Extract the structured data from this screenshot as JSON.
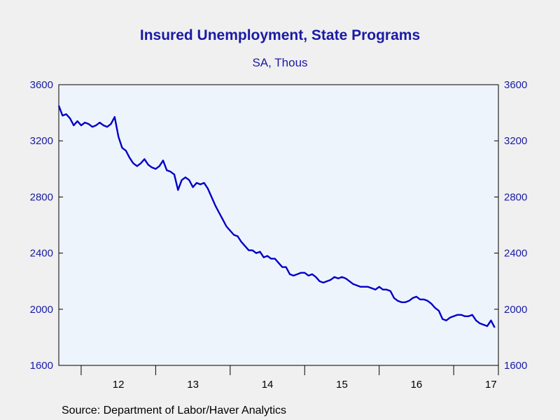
{
  "chart_data": {
    "type": "line",
    "title": "Insured Unemployment, State Programs",
    "subtitle": "SA, Thous",
    "source": "Source:  Department of Labor/Haver Analytics",
    "ylim": [
      1600,
      3600
    ],
    "yticks": [
      1600,
      2000,
      2400,
      2800,
      3200,
      3600
    ],
    "ytick_labels": [
      "1600",
      "2000",
      "2400",
      "2800",
      "3200",
      "3600"
    ],
    "axis_right_mirrored": true,
    "xlim": [
      2011.7,
      2017.6
    ],
    "x_year_ticks": [
      2012,
      2013,
      2014,
      2015,
      2016,
      2017
    ],
    "x_labels": [
      {
        "x": 2012.5,
        "label": "12"
      },
      {
        "x": 2013.5,
        "label": "13"
      },
      {
        "x": 2014.5,
        "label": "14"
      },
      {
        "x": 2015.5,
        "label": "15"
      },
      {
        "x": 2016.5,
        "label": "16"
      },
      {
        "x": 2017.5,
        "label": "17"
      }
    ],
    "grid": false,
    "colors": {
      "line": "#0000c8",
      "plot_bg": "#eef4fc",
      "text": "#1a1aa6"
    },
    "series": [
      {
        "x": [
          2011.7,
          2011.75,
          2011.8,
          2011.85,
          2011.9,
          2011.95,
          2012.0,
          2012.05,
          2012.1,
          2012.15,
          2012.2,
          2012.25,
          2012.3,
          2012.35,
          2012.4,
          2012.45,
          2012.5,
          2012.55,
          2012.6,
          2012.65,
          2012.7,
          2012.75,
          2012.8,
          2012.85,
          2012.9,
          2012.95,
          2013.0,
          2013.05,
          2013.1,
          2013.15,
          2013.2,
          2013.25,
          2013.3,
          2013.35,
          2013.4,
          2013.45,
          2013.5,
          2013.55,
          2013.6,
          2013.65,
          2013.7,
          2013.75,
          2013.8,
          2013.85,
          2013.9,
          2013.95,
          2014.0,
          2014.05,
          2014.1,
          2014.15,
          2014.2,
          2014.25,
          2014.3,
          2014.35,
          2014.4,
          2014.45,
          2014.5,
          2014.55,
          2014.6,
          2014.65,
          2014.7,
          2014.75,
          2014.8,
          2014.85,
          2014.9,
          2014.95,
          2015.0,
          2015.05,
          2015.1,
          2015.15,
          2015.2,
          2015.25,
          2015.3,
          2015.35,
          2015.4,
          2015.45,
          2015.5,
          2015.55,
          2015.6,
          2015.65,
          2015.7,
          2015.75,
          2015.8,
          2015.85,
          2015.9,
          2015.95,
          2016.0,
          2016.05,
          2016.1,
          2016.15,
          2016.2,
          2016.25,
          2016.3,
          2016.35,
          2016.4,
          2016.45,
          2016.5,
          2016.55,
          2016.6,
          2016.65,
          2016.7,
          2016.75,
          2016.8,
          2016.85,
          2016.9,
          2016.95,
          2017.0,
          2017.05,
          2017.1,
          2017.15,
          2017.2,
          2017.25,
          2017.3,
          2017.35,
          2017.4,
          2017.45,
          2017.5,
          2017.55
        ],
        "y": [
          3450,
          3380,
          3390,
          3360,
          3310,
          3340,
          3310,
          3330,
          3320,
          3300,
          3310,
          3330,
          3310,
          3300,
          3320,
          3370,
          3230,
          3150,
          3130,
          3080,
          3040,
          3020,
          3040,
          3070,
          3030,
          3010,
          3000,
          3020,
          3060,
          2990,
          2980,
          2960,
          2850,
          2920,
          2940,
          2920,
          2870,
          2900,
          2890,
          2900,
          2860,
          2800,
          2740,
          2690,
          2640,
          2590,
          2560,
          2530,
          2520,
          2480,
          2450,
          2420,
          2420,
          2400,
          2410,
          2370,
          2380,
          2360,
          2360,
          2330,
          2300,
          2300,
          2250,
          2240,
          2250,
          2260,
          2260,
          2240,
          2250,
          2230,
          2200,
          2190,
          2200,
          2210,
          2230,
          2220,
          2230,
          2220,
          2200,
          2180,
          2170,
          2160,
          2160,
          2160,
          2150,
          2140,
          2160,
          2140,
          2140,
          2130,
          2080,
          2060,
          2050,
          2050,
          2060,
          2080,
          2090,
          2070,
          2070,
          2060,
          2040,
          2010,
          1990,
          1930,
          1920,
          1940,
          1950,
          1960,
          1960,
          1950,
          1950,
          1960,
          1920,
          1900,
          1890,
          1880,
          1920,
          1870
        ]
      }
    ]
  }
}
